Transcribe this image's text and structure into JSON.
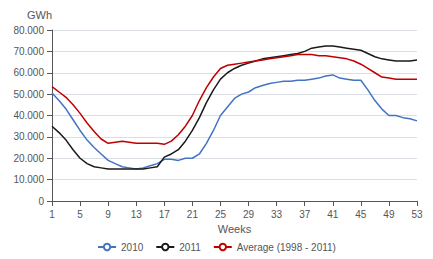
{
  "chart_data": {
    "type": "line",
    "xlabel": "Weeks",
    "ylabel": "GWh",
    "x": [
      1,
      2,
      3,
      4,
      5,
      6,
      7,
      8,
      9,
      10,
      11,
      12,
      13,
      14,
      15,
      16,
      17,
      18,
      19,
      20,
      21,
      22,
      23,
      24,
      25,
      26,
      27,
      28,
      29,
      30,
      31,
      32,
      33,
      34,
      35,
      36,
      37,
      38,
      39,
      40,
      41,
      42,
      43,
      44,
      45,
      46,
      47,
      48,
      49,
      50,
      51,
      52,
      53
    ],
    "series": [
      {
        "name": "2010",
        "color": "#4472C4",
        "values": [
          50500,
          47000,
          43000,
          38000,
          33000,
          28500,
          25000,
          22000,
          19000,
          17500,
          16000,
          15500,
          15000,
          15500,
          16500,
          17500,
          19500,
          19500,
          19000,
          20000,
          20000,
          22000,
          27000,
          33000,
          40000,
          44000,
          48000,
          50000,
          51000,
          53000,
          54000,
          55000,
          55500,
          56000,
          56000,
          56500,
          56500,
          57000,
          57500,
          58500,
          59000,
          57500,
          57000,
          56500,
          56500,
          52000,
          47000,
          43000,
          40000,
          40000,
          39000,
          38500,
          37500
        ]
      },
      {
        "name": "2011",
        "color": "#1A1A1A",
        "values": [
          35000,
          32000,
          28500,
          24000,
          20000,
          17500,
          16000,
          15500,
          15000,
          15000,
          15000,
          15000,
          15000,
          15000,
          15500,
          16000,
          20500,
          22000,
          24000,
          28000,
          33000,
          39000,
          46000,
          52000,
          57000,
          60000,
          62000,
          63500,
          64500,
          65500,
          66500,
          67000,
          67500,
          68000,
          68500,
          69000,
          70000,
          71500,
          72000,
          72500,
          72500,
          72000,
          71500,
          71000,
          70500,
          69000,
          67500,
          66500,
          66000,
          65500,
          65500,
          65500,
          66000
        ]
      },
      {
        "name": "Average (1998 - 2011)",
        "color": "#C00000",
        "values": [
          53500,
          51000,
          48500,
          45000,
          41000,
          36500,
          32500,
          29000,
          27000,
          27500,
          28000,
          27500,
          27000,
          27000,
          27000,
          27000,
          26500,
          28000,
          31000,
          35000,
          40000,
          47000,
          53000,
          58000,
          62000,
          63500,
          64000,
          64500,
          65000,
          65500,
          66000,
          66500,
          67000,
          67500,
          68000,
          68500,
          68500,
          68500,
          68000,
          68000,
          67500,
          67000,
          66500,
          65500,
          64000,
          62000,
          60000,
          58000,
          57500,
          57000,
          57000,
          57000,
          57000
        ]
      }
    ],
    "xlim": [
      1,
      53
    ],
    "xticks": [
      1,
      5,
      9,
      13,
      17,
      21,
      25,
      29,
      33,
      37,
      41,
      45,
      49,
      53
    ],
    "ylim": [
      0,
      80000
    ],
    "yticks": [
      0,
      {
        "value": 10000,
        "label": "10.000"
      },
      {
        "value": 20000,
        "label": "20.000"
      },
      {
        "value": 30000,
        "label": "30.000"
      },
      {
        "value": 40000,
        "label": "40.000"
      },
      {
        "value": 50000,
        "label": "50.000"
      },
      {
        "value": 60000,
        "label": "60.000"
      },
      {
        "value": 70000,
        "label": "70.000"
      },
      {
        "value": 80000,
        "label": "80.000"
      }
    ],
    "grid": true,
    "legend": "bottom"
  }
}
